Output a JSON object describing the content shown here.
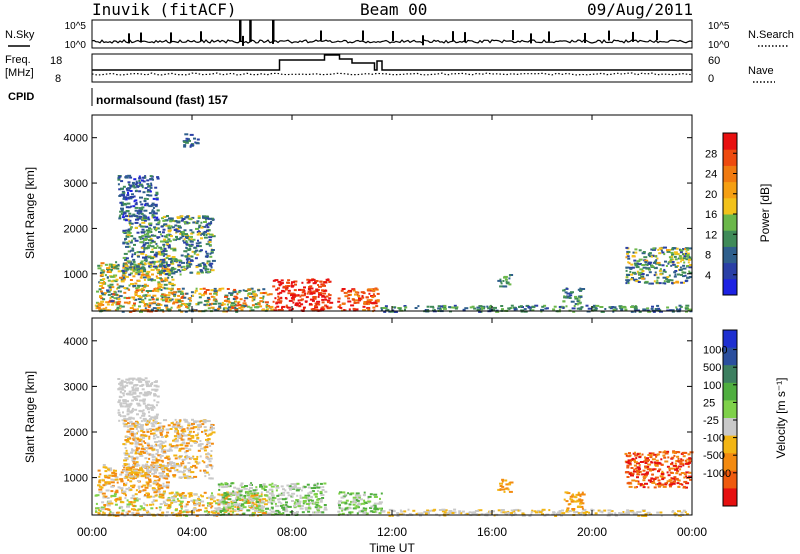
{
  "header": {
    "station": "Inuvik (fitACF)",
    "beam": "Beam 00",
    "date": "09/Aug/2011"
  },
  "summary_panels": {
    "nsky": {
      "label": "N.Sky",
      "ticks": [
        "10^5",
        "10^0"
      ]
    },
    "nsearch": {
      "label": "N.Search",
      "ticks": [
        "10^5",
        "10^0"
      ]
    },
    "freq": {
      "label_line1": "Freq.",
      "label_line2": "[MHz]",
      "ticks": [
        "18",
        "8"
      ]
    },
    "nave": {
      "label": "Nave",
      "ticks": [
        "60",
        "0"
      ]
    },
    "cpid": {
      "label": "CPID",
      "text": "normalsound (fast) 157"
    }
  },
  "colors": {
    "power_scale": [
      "#1d22e3",
      "#2a3fa6",
      "#2f5f8c",
      "#3f8a58",
      "#6bb74a",
      "#f2c21b",
      "#f59f12",
      "#f07a10",
      "#ee4a0e",
      "#e81010"
    ],
    "velocity_scale": [
      "#1e2fd0",
      "#2b4f9e",
      "#3d7f60",
      "#4fae3f",
      "#7fd14a",
      "#c9c9c9",
      "#f2b514",
      "#f38a10",
      "#ef5a0e",
      "#e61010"
    ]
  },
  "chart_data": [
    {
      "type": "heatmap",
      "name": "power-panel",
      "ylabel": "Slant Range [km]",
      "ytick_labels": [
        "1000",
        "2000",
        "3000",
        "4000"
      ],
      "xlim_hours": [
        0,
        24
      ],
      "ylim_km": [
        180,
        4500
      ],
      "colorbar_label": "Power [dB]",
      "colorbar_ticks": [
        "4",
        "8",
        "12",
        "16",
        "20",
        "24",
        "28"
      ],
      "color_range": [
        0,
        32
      ],
      "scatter_regions": [
        {
          "t0": 0.1,
          "t1": 7.2,
          "r0": 180,
          "r1": 700,
          "v0": 6,
          "v1": 28
        },
        {
          "t0": 7.2,
          "t1": 9.5,
          "r0": 200,
          "r1": 900,
          "v0": 26,
          "v1": 32
        },
        {
          "t0": 9.8,
          "t1": 11.4,
          "r0": 200,
          "r1": 700,
          "v0": 22,
          "v1": 32
        },
        {
          "t0": 0.2,
          "t1": 3.2,
          "r0": 700,
          "r1": 1300,
          "v0": 8,
          "v1": 24
        },
        {
          "t0": 1.2,
          "t1": 4.8,
          "r0": 1000,
          "r1": 2300,
          "v0": 4,
          "v1": 18
        },
        {
          "t0": 1.0,
          "t1": 2.6,
          "r0": 2200,
          "r1": 3200,
          "v0": 2,
          "v1": 12
        },
        {
          "t0": 11.5,
          "t1": 23.9,
          "r0": 180,
          "r1": 320,
          "v0": 4,
          "v1": 16
        },
        {
          "t0": 21.3,
          "t1": 23.9,
          "r0": 800,
          "r1": 1600,
          "v0": 4,
          "v1": 20
        },
        {
          "t0": 18.8,
          "t1": 19.6,
          "r0": 300,
          "r1": 700,
          "v0": 6,
          "v1": 16
        },
        {
          "t0": 16.2,
          "t1": 16.7,
          "r0": 700,
          "r1": 1000,
          "v0": 4,
          "v1": 14
        },
        {
          "t0": 3.6,
          "t1": 4.2,
          "r0": 3800,
          "r1": 4100,
          "v0": 4,
          "v1": 12
        }
      ]
    },
    {
      "type": "heatmap",
      "name": "velocity-panel",
      "ylabel": "Slant Range [km]",
      "ytick_labels": [
        "1000",
        "2000",
        "3000",
        "4000"
      ],
      "xtick_labels": [
        "00:00",
        "04:00",
        "08:00",
        "12:00",
        "16:00",
        "20:00",
        "00:00"
      ],
      "xlabel": "Time UT",
      "xlim_hours": [
        0,
        24
      ],
      "ylim_km": [
        180,
        4500
      ],
      "colorbar_label": "Velocity [m s⁻¹]",
      "colorbar_ticks": [
        "1000",
        "500",
        "100",
        "25",
        "-25",
        "-100",
        "-500",
        "-1000"
      ],
      "scatter_regions": [
        {
          "t0": 0.1,
          "t1": 7.0,
          "r0": 180,
          "r1": 700,
          "class": [
            5,
            6,
            7,
            4
          ]
        },
        {
          "t0": 5.0,
          "t1": 9.3,
          "r0": 200,
          "r1": 900,
          "class": [
            5,
            5,
            3,
            4
          ]
        },
        {
          "t0": 9.8,
          "t1": 11.6,
          "r0": 200,
          "r1": 700,
          "class": [
            3,
            4,
            5
          ]
        },
        {
          "t0": 0.2,
          "t1": 3.0,
          "r0": 700,
          "r1": 1300,
          "class": [
            7,
            6,
            5
          ]
        },
        {
          "t0": 1.2,
          "t1": 4.8,
          "r0": 1000,
          "r1": 2300,
          "class": [
            5,
            5,
            7,
            6
          ]
        },
        {
          "t0": 1.0,
          "t1": 2.6,
          "r0": 2200,
          "r1": 3200,
          "class": [
            5,
            5
          ]
        },
        {
          "t0": 11.5,
          "t1": 23.9,
          "r0": 180,
          "r1": 320,
          "class": [
            5,
            5,
            6
          ]
        },
        {
          "t0": 21.3,
          "t1": 23.9,
          "r0": 800,
          "r1": 1600,
          "class": [
            8,
            9,
            7
          ]
        },
        {
          "t0": 18.8,
          "t1": 19.6,
          "r0": 300,
          "r1": 700,
          "class": [
            6,
            7
          ]
        },
        {
          "t0": 16.2,
          "t1": 16.7,
          "r0": 700,
          "r1": 1000,
          "class": [
            7,
            6
          ]
        }
      ]
    }
  ]
}
